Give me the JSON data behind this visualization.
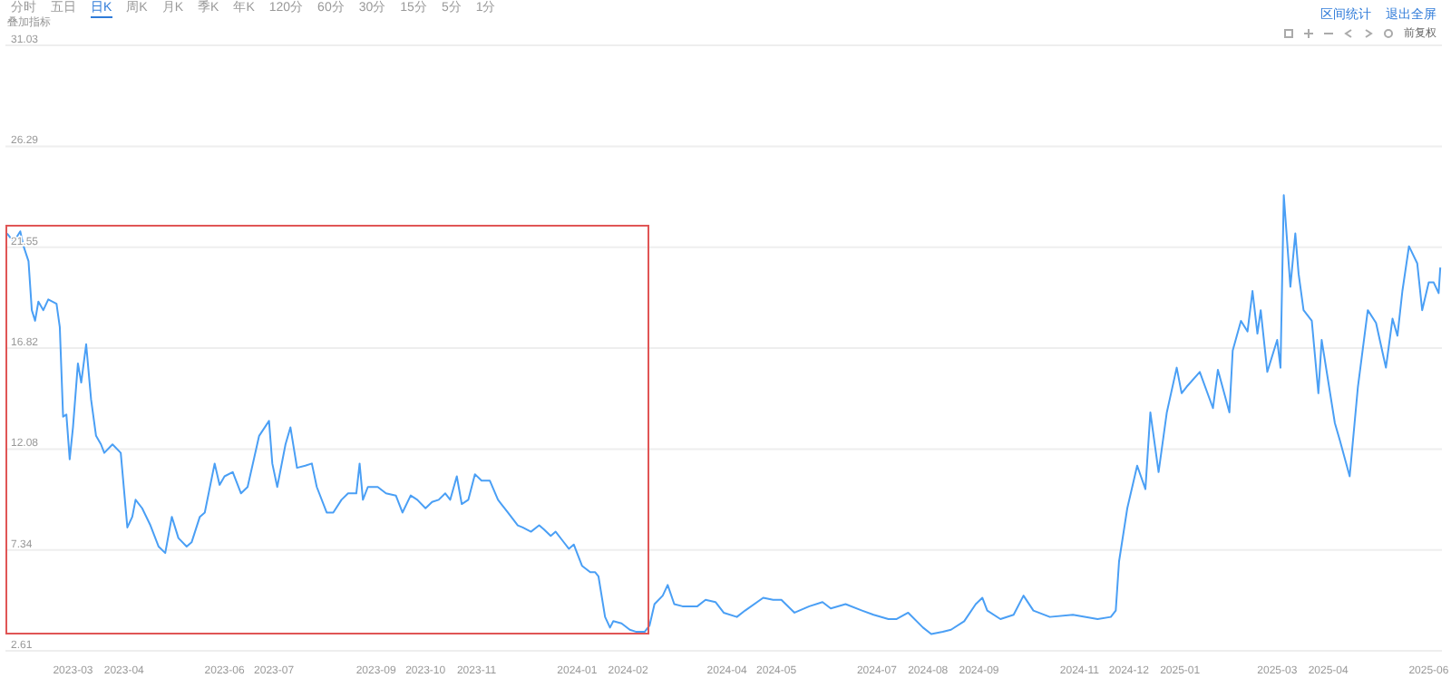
{
  "chart_data": {
    "type": "line",
    "x": [
      "2023-01-20",
      "2023-01-24",
      "2023-01-28",
      "2023-01-30",
      "2023-02-02",
      "2023-02-04",
      "2023-02-06",
      "2023-02-08",
      "2023-02-11",
      "2023-02-14",
      "2023-02-19",
      "2023-02-21",
      "2023-02-23",
      "2023-02-25",
      "2023-02-27",
      "2023-03-01",
      "2023-03-04",
      "2023-03-06",
      "2023-03-09",
      "2023-03-12",
      "2023-03-15",
      "2023-03-18",
      "2023-03-20",
      "2023-03-25",
      "2023-03-30",
      "2023-04-03",
      "2023-04-06",
      "2023-04-08",
      "2023-04-12",
      "2023-04-17",
      "2023-04-22",
      "2023-04-26",
      "2023-04-30",
      "2023-05-04",
      "2023-05-09",
      "2023-05-12",
      "2023-05-17",
      "2023-05-20",
      "2023-05-26",
      "2023-05-29",
      "2023-06-01",
      "2023-06-06",
      "2023-06-11",
      "2023-06-15",
      "2023-06-22",
      "2023-06-28",
      "2023-06-30",
      "2023-07-03",
      "2023-07-08",
      "2023-07-11",
      "2023-07-15",
      "2023-07-20",
      "2023-07-24",
      "2023-07-27",
      "2023-08-02",
      "2023-08-06",
      "2023-08-11",
      "2023-08-15",
      "2023-08-20",
      "2023-08-22",
      "2023-08-24",
      "2023-08-27",
      "2023-09-02",
      "2023-09-07",
      "2023-09-13",
      "2023-09-17",
      "2023-09-22",
      "2023-09-26",
      "2023-10-01",
      "2023-10-05",
      "2023-10-09",
      "2023-10-13",
      "2023-10-16",
      "2023-10-20",
      "2023-10-23",
      "2023-10-27",
      "2023-10-31",
      "2023-11-04",
      "2023-11-09",
      "2023-11-14",
      "2023-11-16",
      "2023-11-20",
      "2023-11-26",
      "2023-11-29",
      "2023-12-04",
      "2023-12-09",
      "2023-12-12",
      "2023-12-16",
      "2023-12-19",
      "2023-12-23",
      "2023-12-27",
      "2023-12-30",
      "2024-01-01",
      "2024-01-04",
      "2024-01-09",
      "2024-01-12",
      "2024-01-14",
      "2024-01-18",
      "2024-01-21",
      "2024-01-23",
      "2024-01-28",
      "2024-02-02",
      "2024-02-06",
      "2024-02-11",
      "2024-02-14",
      "2024-02-17",
      "2024-02-22",
      "2024-02-25",
      "2024-02-29",
      "2024-03-05",
      "2024-03-14",
      "2024-03-19",
      "2024-03-25",
      "2024-03-30",
      "2024-04-07",
      "2024-04-12",
      "2024-04-23",
      "2024-04-29",
      "2024-05-04",
      "2024-05-12",
      "2024-05-21",
      "2024-05-29",
      "2024-06-03",
      "2024-06-12",
      "2024-06-22",
      "2024-06-29",
      "2024-07-08",
      "2024-07-13",
      "2024-07-20",
      "2024-07-29",
      "2024-08-03",
      "2024-08-10",
      "2024-08-15",
      "2024-08-23",
      "2024-08-30",
      "2024-09-03",
      "2024-09-06",
      "2024-09-14",
      "2024-09-22",
      "2024-09-28",
      "2024-10-04",
      "2024-10-14",
      "2024-10-28",
      "2024-11-12",
      "2024-11-20",
      "2024-11-23",
      "2024-11-25",
      "2024-11-30",
      "2024-12-06",
      "2024-12-11",
      "2024-12-14",
      "2024-12-19",
      "2024-12-24",
      "2024-12-30",
      "2025-01-02",
      "2025-01-05",
      "2025-01-13",
      "2025-01-21",
      "2025-01-24",
      "2025-01-31",
      "2025-02-02",
      "2025-02-07",
      "2025-02-11",
      "2025-02-14",
      "2025-02-17",
      "2025-02-19",
      "2025-02-23",
      "2025-03-01",
      "2025-03-03",
      "2025-03-05",
      "2025-03-09",
      "2025-03-12",
      "2025-03-14",
      "2025-03-17",
      "2025-03-22",
      "2025-03-26",
      "2025-03-28",
      "2025-04-05",
      "2025-04-08",
      "2025-04-14",
      "2025-04-19",
      "2025-04-25",
      "2025-04-30",
      "2025-05-06",
      "2025-05-10",
      "2025-05-13",
      "2025-05-16",
      "2025-05-20",
      "2025-05-25",
      "2025-05-28",
      "2025-06-01",
      "2025-06-04",
      "2025-06-07",
      "2025-06-08"
    ],
    "series": [
      {
        "color": "#4a9ff5",
        "values": [
          22.2,
          21.8,
          22.3,
          21.6,
          20.9,
          18.6,
          18.1,
          19.0,
          18.6,
          19.1,
          18.9,
          17.8,
          13.6,
          13.7,
          11.6,
          13.1,
          16.1,
          15.2,
          17.0,
          14.4,
          12.7,
          12.3,
          11.9,
          12.3,
          11.9,
          8.4,
          8.9,
          9.7,
          9.3,
          8.5,
          7.5,
          7.2,
          8.9,
          7.9,
          7.5,
          7.7,
          8.9,
          9.1,
          11.4,
          10.4,
          10.8,
          11.0,
          10.0,
          10.3,
          12.7,
          13.4,
          11.4,
          10.3,
          12.3,
          13.1,
          11.2,
          11.3,
          11.4,
          10.3,
          9.1,
          9.1,
          9.7,
          10.0,
          10.0,
          11.4,
          9.7,
          10.3,
          10.3,
          10.0,
          9.9,
          9.1,
          9.9,
          9.7,
          9.3,
          9.6,
          9.7,
          10.0,
          9.7,
          10.8,
          9.5,
          9.7,
          10.9,
          10.6,
          10.6,
          9.7,
          9.5,
          9.1,
          8.5,
          8.4,
          8.2,
          8.5,
          8.3,
          8.0,
          8.2,
          7.8,
          7.4,
          7.6,
          7.2,
          6.6,
          6.3,
          6.3,
          6.1,
          4.2,
          3.7,
          4.0,
          3.9,
          3.6,
          3.5,
          3.5,
          3.8,
          4.8,
          5.2,
          5.7,
          4.8,
          4.7,
          4.7,
          5.0,
          4.9,
          4.4,
          4.2,
          4.5,
          5.1,
          5.0,
          5.0,
          4.4,
          4.7,
          4.9,
          4.6,
          4.8,
          4.5,
          4.3,
          4.1,
          4.1,
          4.4,
          3.7,
          3.4,
          3.5,
          3.6,
          4.0,
          4.8,
          5.1,
          4.5,
          4.1,
          4.3,
          5.2,
          4.5,
          4.2,
          4.3,
          4.1,
          4.2,
          4.5,
          6.8,
          9.3,
          11.3,
          10.2,
          13.8,
          11.0,
          13.8,
          15.9,
          14.7,
          15.0,
          15.7,
          14.0,
          15.8,
          13.8,
          16.7,
          18.1,
          17.6,
          19.5,
          17.5,
          18.6,
          15.7,
          17.2,
          15.9,
          24.0,
          19.7,
          22.2,
          20.3,
          18.6,
          18.1,
          14.7,
          17.2,
          13.3,
          12.5,
          10.8,
          15.0,
          18.6,
          18.0,
          15.9,
          18.2,
          17.4,
          19.5,
          21.6,
          20.8,
          18.6,
          19.9,
          19.9,
          19.4,
          20.6
        ]
      }
    ],
    "xlim": [
      "2023-01-19",
      "2025-06-09"
    ],
    "xticks": [
      "2023-03",
      "2023-04",
      "2023-06",
      "2023-07",
      "2023-09",
      "2023-10",
      "2023-11",
      "2024-01",
      "2024-02",
      "2024-04",
      "2024-05",
      "2024-07",
      "2024-08",
      "2024-09",
      "2024-11",
      "2024-12",
      "2025-01",
      "2025-03",
      "2025-04",
      "2025-06"
    ],
    "ylim": [
      2.61,
      31.03
    ],
    "yticks": [
      2.61,
      7.34,
      12.08,
      16.82,
      21.55,
      26.29,
      31.03
    ],
    "grid": "y",
    "annotations": [
      "分时",
      "五日",
      "日K",
      "周K",
      "月K",
      "季K",
      "年K",
      "120分",
      "60分",
      "30分",
      "15分",
      "5分",
      "1分",
      "叠加指标",
      "区间统计",
      "退出全屏",
      "前复权"
    ]
  }
}
